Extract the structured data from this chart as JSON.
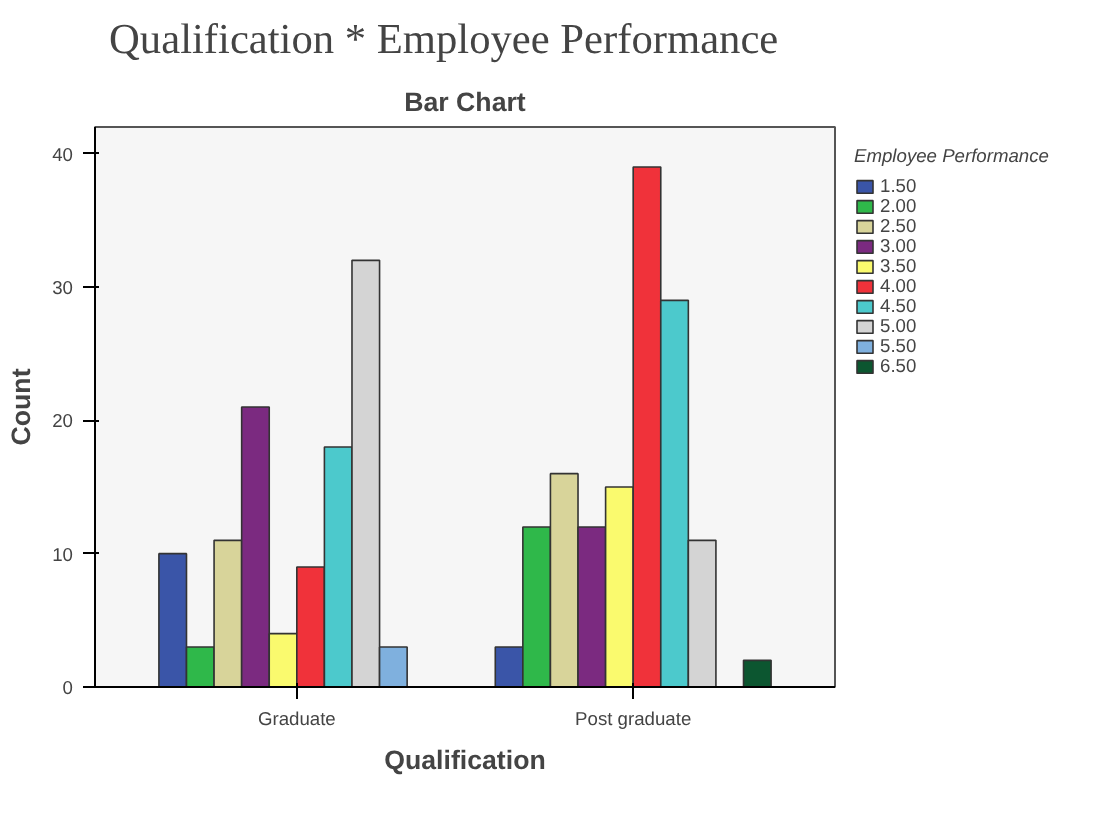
{
  "chart_data": {
    "type": "bar",
    "title": "Qualification  *   Employee  Performance",
    "subtitle": "Bar Chart",
    "xlabel": "Qualification",
    "ylabel": "Count",
    "legend_title": "Employee Performance",
    "categories": [
      "Graduate",
      "Post graduate"
    ],
    "series": [
      {
        "name": "1.50",
        "color": "#3a55a8",
        "values": [
          10,
          3
        ]
      },
      {
        "name": "2.00",
        "color": "#2fb84a",
        "values": [
          3,
          12
        ]
      },
      {
        "name": "2.50",
        "color": "#d8d49a",
        "values": [
          11,
          16
        ]
      },
      {
        "name": "3.00",
        "color": "#7b2a80",
        "values": [
          21,
          12
        ]
      },
      {
        "name": "3.50",
        "color": "#fafa6e",
        "values": [
          4,
          15
        ]
      },
      {
        "name": "4.00",
        "color": "#f0323a",
        "values": [
          9,
          39
        ]
      },
      {
        "name": "4.50",
        "color": "#4cc9cc",
        "values": [
          18,
          29
        ]
      },
      {
        "name": "5.00",
        "color": "#d4d4d4",
        "values": [
          32,
          11
        ]
      },
      {
        "name": "5.50",
        "color": "#7fb0de",
        "values": [
          3,
          null
        ]
      },
      {
        "name": "6.50",
        "color": "#0c5630",
        "values": [
          null,
          2
        ]
      }
    ],
    "ylim": [
      0,
      42
    ],
    "yticks": [
      0,
      10,
      20,
      30,
      40
    ],
    "grid": false,
    "legend": "right"
  }
}
